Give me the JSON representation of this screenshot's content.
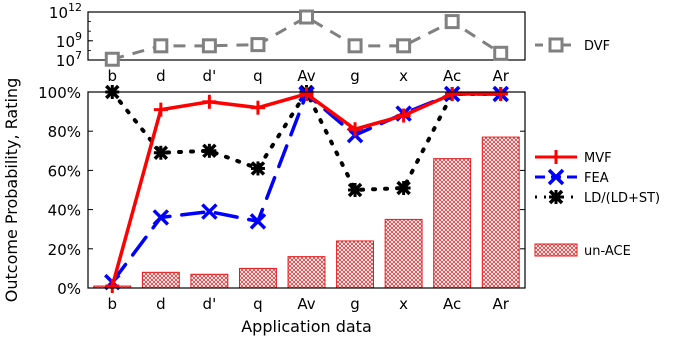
{
  "chart_data": [
    {
      "type": "line",
      "categories": [
        "b",
        "d",
        "d'",
        "q",
        "Av",
        "g",
        "x",
        "Ac",
        "Ar"
      ],
      "yscale": "log",
      "ytick_labels": [
        "10^7",
        "10^9",
        "10^12"
      ],
      "ylim": [
        10000000,
        1000000000000
      ],
      "series": [
        {
          "name": "DVF",
          "color": "#808080",
          "marker": "square",
          "values": [
            12000000,
            300000000,
            300000000,
            400000000,
            300000000000,
            300000000,
            300000000,
            100000000000,
            50000000
          ]
        }
      ],
      "legend_position": "right"
    },
    {
      "type": "bar",
      "categories": [
        "b",
        "d",
        "d'",
        "q",
        "Av",
        "g",
        "x",
        "Ac",
        "Ar"
      ],
      "xlabel": "Application data",
      "ylabel": "Outcome Probability, Rating",
      "ylim": [
        0,
        100
      ],
      "ytick_labels": [
        "0%",
        "20%",
        "40%",
        "60%",
        "80%",
        "100%"
      ],
      "ytick_values": [
        0,
        20,
        40,
        60,
        80,
        100
      ],
      "legend_position": "right",
      "series": [
        {
          "name": "MVF",
          "kind": "line",
          "color": "#ff0000",
          "marker": "plus",
          "values": [
            1,
            91,
            95,
            92,
            99,
            81,
            88,
            99,
            99
          ]
        },
        {
          "name": "FEA",
          "kind": "line",
          "color": "#0000ff",
          "marker": "x",
          "values": [
            3,
            36,
            39,
            34,
            99,
            78,
            89,
            99,
            99
          ]
        },
        {
          "name": "LD/(LD+ST)",
          "kind": "line",
          "color": "#000000",
          "marker": "star",
          "values": [
            100,
            69,
            70,
            61,
            100,
            50,
            51,
            99,
            99
          ]
        },
        {
          "name": "un-ACE",
          "kind": "bar",
          "color": "#e41a1c",
          "values": [
            1,
            8,
            7,
            10,
            16,
            24,
            35,
            66,
            77
          ]
        }
      ]
    }
  ]
}
